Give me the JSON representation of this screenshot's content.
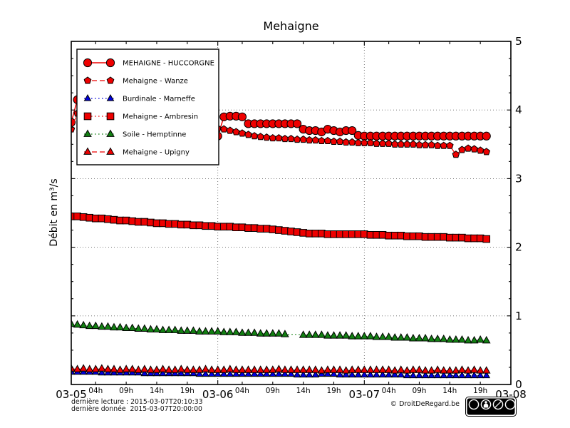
{
  "chart_data": {
    "type": "line",
    "title": "Mehaigne",
    "ylabel": "Débit en m³/s",
    "ylim": [
      0,
      5
    ],
    "y_major_ticks": [
      0,
      1,
      2,
      3,
      4,
      5
    ],
    "y_minor_step": 0.25,
    "x_hours_total": 72,
    "x_step_hours": 1,
    "x_day_labels": [
      "03-05",
      "03-06",
      "03-07",
      "03-08"
    ],
    "x_hour_tick_hours": [
      4,
      9,
      14,
      19
    ],
    "x_hour_tick_labels": [
      "04h",
      "09h",
      "14h",
      "19h"
    ],
    "grid": {
      "h_lines": [
        1,
        2,
        3,
        4
      ],
      "v_lines_hours": [
        24,
        48
      ]
    },
    "legend_position": "upper-left",
    "series": [
      {
        "name": "MEHAIGNE - HUCCORGNE",
        "color": "#ee0000",
        "line_style": "solid",
        "line_width": 1.5,
        "marker": "circle",
        "marker_size": 5.6,
        "marker_gaps": [],
        "values": [
          3.82,
          4.15,
          3.95,
          3.88,
          3.84,
          3.8,
          3.77,
          3.74,
          3.72,
          3.7,
          3.68,
          3.66,
          3.64,
          3.63,
          3.62,
          3.61,
          3.6,
          3.59,
          3.58,
          3.57,
          3.56,
          3.55,
          3.54,
          3.53,
          3.62,
          3.9,
          3.91,
          3.91,
          3.9,
          3.8,
          3.8,
          3.8,
          3.8,
          3.8,
          3.8,
          3.8,
          3.8,
          3.8,
          3.72,
          3.7,
          3.7,
          3.68,
          3.72,
          3.7,
          3.68,
          3.7,
          3.7,
          3.63,
          3.62,
          3.62,
          3.62,
          3.62,
          3.62,
          3.62,
          3.62,
          3.62,
          3.62,
          3.62,
          3.62,
          3.62,
          3.62,
          3.62,
          3.62,
          3.62,
          3.62,
          3.62,
          3.62,
          3.62,
          3.62
        ]
      },
      {
        "name": "Mehaigne - Wanze",
        "color": "#ee0000",
        "line_style": "dashed",
        "line_width": 1.2,
        "marker": "pentagon",
        "marker_size": 5.0,
        "marker_gaps": [],
        "values": [
          3.72,
          3.95,
          3.85,
          3.81,
          3.79,
          3.77,
          3.75,
          3.74,
          3.73,
          3.72,
          3.71,
          3.71,
          3.7,
          3.7,
          3.69,
          3.69,
          3.68,
          3.68,
          3.67,
          3.67,
          3.66,
          3.66,
          3.67,
          3.7,
          3.73,
          3.72,
          3.7,
          3.68,
          3.66,
          3.64,
          3.62,
          3.61,
          3.6,
          3.59,
          3.59,
          3.58,
          3.58,
          3.57,
          3.57,
          3.56,
          3.56,
          3.55,
          3.55,
          3.54,
          3.54,
          3.53,
          3.53,
          3.52,
          3.52,
          3.52,
          3.51,
          3.51,
          3.51,
          3.5,
          3.5,
          3.5,
          3.5,
          3.49,
          3.49,
          3.49,
          3.48,
          3.48,
          3.48,
          3.35,
          3.42,
          3.44,
          3.43,
          3.41,
          3.39
        ]
      },
      {
        "name": "Burdinale - Marneffe",
        "color": "#0000dd",
        "line_style": "dotted",
        "line_width": 1.2,
        "marker": "triangle",
        "marker_size": 5.0,
        "marker_gaps": [],
        "values": [
          0.18,
          0.18,
          0.18,
          0.18,
          0.18,
          0.17,
          0.17,
          0.17,
          0.17,
          0.17,
          0.17,
          0.17,
          0.16,
          0.16,
          0.16,
          0.16,
          0.16,
          0.16,
          0.16,
          0.16,
          0.16,
          0.15,
          0.15,
          0.15,
          0.15,
          0.15,
          0.15,
          0.15,
          0.15,
          0.15,
          0.15,
          0.15,
          0.15,
          0.15,
          0.15,
          0.15,
          0.15,
          0.14,
          0.14,
          0.14,
          0.14,
          0.15,
          0.15,
          0.15,
          0.14,
          0.14,
          0.14,
          0.14,
          0.14,
          0.14,
          0.14,
          0.14,
          0.14,
          0.14,
          0.14,
          0.13,
          0.13,
          0.13,
          0.13,
          0.13,
          0.13,
          0.13,
          0.13,
          0.13,
          0.13,
          0.13,
          0.13,
          0.13,
          0.13
        ]
      },
      {
        "name": "Mehaigne - Ambresin",
        "color": "#ee0000",
        "line_style": "dotted",
        "line_width": 1.2,
        "marker": "square",
        "marker_size": 4.8,
        "marker_gaps": [],
        "values": [
          2.45,
          2.45,
          2.44,
          2.43,
          2.42,
          2.42,
          2.41,
          2.4,
          2.39,
          2.39,
          2.38,
          2.37,
          2.37,
          2.36,
          2.35,
          2.35,
          2.34,
          2.34,
          2.33,
          2.33,
          2.32,
          2.32,
          2.31,
          2.31,
          2.3,
          2.3,
          2.3,
          2.29,
          2.29,
          2.28,
          2.28,
          2.27,
          2.27,
          2.26,
          2.25,
          2.24,
          2.23,
          2.22,
          2.21,
          2.2,
          2.2,
          2.2,
          2.19,
          2.19,
          2.19,
          2.19,
          2.19,
          2.19,
          2.19,
          2.18,
          2.18,
          2.18,
          2.17,
          2.17,
          2.17,
          2.16,
          2.16,
          2.16,
          2.15,
          2.15,
          2.15,
          2.15,
          2.14,
          2.14,
          2.14,
          2.13,
          2.13,
          2.13,
          2.12
        ]
      },
      {
        "name": "Soile - Hemptinne",
        "color": "#128012",
        "line_style": "dotted",
        "line_width": 1.2,
        "marker": "triangle",
        "marker_size": 5.5,
        "marker_gaps": [
          36,
          37
        ],
        "values": [
          0.88,
          0.87,
          0.86,
          0.85,
          0.85,
          0.84,
          0.84,
          0.83,
          0.83,
          0.82,
          0.82,
          0.81,
          0.81,
          0.8,
          0.8,
          0.79,
          0.79,
          0.79,
          0.78,
          0.78,
          0.78,
          0.77,
          0.77,
          0.77,
          0.77,
          0.76,
          0.76,
          0.76,
          0.75,
          0.75,
          0.75,
          0.74,
          0.74,
          0.74,
          0.74,
          0.73,
          0.73,
          0.73,
          0.72,
          0.72,
          0.72,
          0.72,
          0.71,
          0.71,
          0.71,
          0.71,
          0.7,
          0.7,
          0.7,
          0.7,
          0.69,
          0.69,
          0.69,
          0.68,
          0.68,
          0.68,
          0.67,
          0.67,
          0.67,
          0.66,
          0.66,
          0.66,
          0.65,
          0.65,
          0.65,
          0.64,
          0.64,
          0.65,
          0.64
        ]
      },
      {
        "name": "Mehaigne - Upigny",
        "color": "#ee0000",
        "line_style": "dashed",
        "line_width": 1.2,
        "marker": "triangle",
        "marker_size": 5.5,
        "marker_gaps": [],
        "values": [
          0.23,
          0.22,
          0.23,
          0.22,
          0.22,
          0.23,
          0.22,
          0.22,
          0.21,
          0.22,
          0.22,
          0.21,
          0.22,
          0.21,
          0.21,
          0.22,
          0.21,
          0.21,
          0.22,
          0.21,
          0.21,
          0.21,
          0.22,
          0.21,
          0.21,
          0.21,
          0.22,
          0.21,
          0.21,
          0.21,
          0.21,
          0.21,
          0.21,
          0.21,
          0.22,
          0.21,
          0.21,
          0.21,
          0.21,
          0.21,
          0.21,
          0.2,
          0.21,
          0.21,
          0.21,
          0.2,
          0.21,
          0.21,
          0.21,
          0.21,
          0.21,
          0.21,
          0.21,
          0.2,
          0.21,
          0.2,
          0.21,
          0.21,
          0.2,
          0.2,
          0.21,
          0.2,
          0.2,
          0.2,
          0.21,
          0.2,
          0.21,
          0.2,
          0.2
        ]
      }
    ]
  },
  "footer": {
    "last_read": "dernière lecture : 2015-03-07T20:10:33",
    "last_data": "dernière donnée  2015-03-07T20:00:00",
    "copyright": "© DroitDeRegard.be",
    "license_labels": [
      "BY",
      "NC",
      "SA"
    ],
    "license_cc": "cc"
  },
  "colors": {
    "red": "#ee0000",
    "green": "#128012",
    "blue": "#0000dd",
    "axis": "#000000",
    "grid": "#666666",
    "background": "#ffffff"
  }
}
